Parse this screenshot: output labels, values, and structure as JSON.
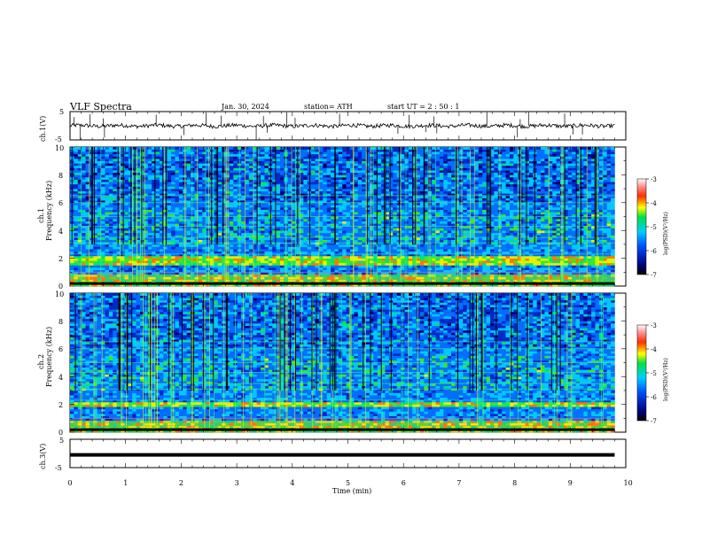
{
  "header": {
    "title": "VLF  Spectra",
    "date": "Jan. 30, 2024",
    "station": "station= ATH",
    "start": "start  UT  =   2  : 50 : 1"
  },
  "chart_data": [
    {
      "type": "line",
      "name": "ch1-waveform",
      "ylabel": "ch.1(V)",
      "yticks": [
        "5",
        "-5"
      ],
      "ylim": [
        -5,
        5
      ],
      "xlim": [
        0,
        10
      ],
      "baseline": 0.0,
      "spikes": [
        0.07,
        0.18,
        0.36,
        0.6,
        0.62,
        1.55,
        2.05,
        2.45,
        2.72,
        3.35,
        3.48,
        3.55,
        3.9,
        4.05,
        4.85,
        5.9,
        6.1,
        6.4,
        6.55,
        6.6,
        7.5,
        8.05,
        8.1,
        8.25,
        8.9,
        9.05,
        9.22
      ]
    },
    {
      "type": "heatmap",
      "name": "ch1-spectrogram",
      "ylabel_top": "ch.1",
      "ylabel": "Frequency  (kHz)",
      "yticks": [
        "0",
        "2",
        "4",
        "6",
        "8",
        "10"
      ],
      "ylim": [
        0,
        10
      ],
      "xlim": [
        0,
        9.8
      ],
      "strong_band_khz": [
        1.5,
        2.2
      ],
      "colorbar": {
        "label": "log(PSD)(V²/Hz)",
        "ticks": [
          "-3",
          "-4",
          "-5",
          "-6",
          "-7"
        ],
        "range": [
          -7,
          -3
        ]
      }
    },
    {
      "type": "heatmap",
      "name": "ch2-spectrogram",
      "ylabel_top": "ch.2",
      "ylabel": "Frequency  (kHz)",
      "yticks": [
        "0",
        "2",
        "4",
        "6",
        "8",
        "10"
      ],
      "ylim": [
        0,
        10
      ],
      "xlim": [
        0,
        9.8
      ],
      "strong_band_khz": [
        1.8,
        2.2
      ],
      "colorbar": {
        "label": "log(PSD)(V²/Hz)",
        "ticks": [
          "-3",
          "-4",
          "-5",
          "-6",
          "-7"
        ],
        "range": [
          -7,
          -3
        ]
      }
    },
    {
      "type": "line",
      "name": "ch3-waveform",
      "ylabel": "ch.3(V)",
      "yticks": [
        "5",
        "-5"
      ],
      "ylim": [
        -5,
        5
      ],
      "xlim": [
        0,
        9.8
      ],
      "baseline": -0.5,
      "xlabel": "Time  (min)",
      "xticks": [
        "0",
        "1",
        "2",
        "3",
        "4",
        "5",
        "6",
        "7",
        "8",
        "9",
        "10"
      ]
    }
  ]
}
